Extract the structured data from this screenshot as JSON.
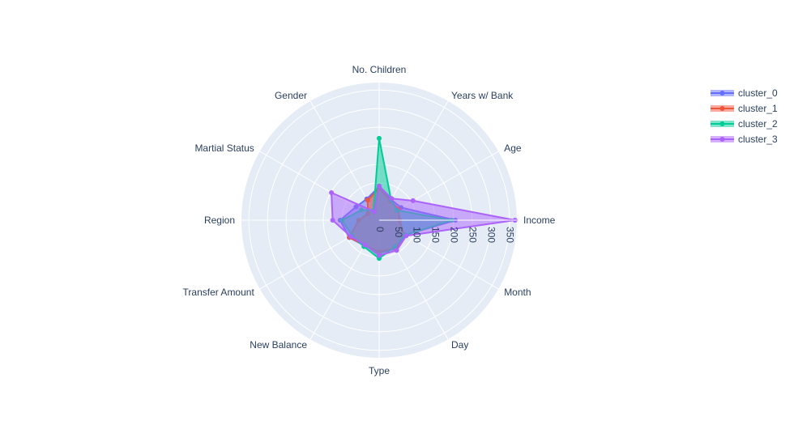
{
  "chart_data": {
    "type": "radar",
    "title": "",
    "categories": [
      "Income",
      "Age",
      "Years w/ Bank",
      "No. Children",
      "Gender",
      "Martial Status",
      "Region",
      "Transfer Amount",
      "New Balance",
      "Type",
      "Day",
      "Month"
    ],
    "radial_ticks": [
      0,
      50,
      100,
      150,
      200,
      250,
      300,
      350
    ],
    "radial_tick_labels": [
      "0",
      "50",
      "100",
      "150",
      "200",
      "250",
      "300",
      "350"
    ],
    "radial_range": [
      0,
      370
    ],
    "grid": true,
    "legend_position": "top-right",
    "series": [
      {
        "name": "cluster_0",
        "color": "#636efa",
        "values": [
          205,
          68,
          64,
          90,
          66,
          72,
          105,
          93,
          79,
          88,
          89,
          80
        ]
      },
      {
        "name": "cluster_1",
        "color": "#EF553B",
        "values": [
          55,
          60,
          60,
          85,
          62,
          35,
          55,
          92,
          78,
          85,
          87,
          77
        ]
      },
      {
        "name": "cluster_2",
        "color": "#00cc96",
        "values": [
          195,
          54,
          64,
          220,
          30,
          55,
          100,
          84,
          82,
          103,
          83,
          80
        ]
      },
      {
        "name": "cluster_3",
        "color": "#ab63fa",
        "values": [
          365,
          105,
          67,
          92,
          27,
          148,
          125,
          88,
          77,
          95,
          94,
          84
        ]
      }
    ]
  }
}
